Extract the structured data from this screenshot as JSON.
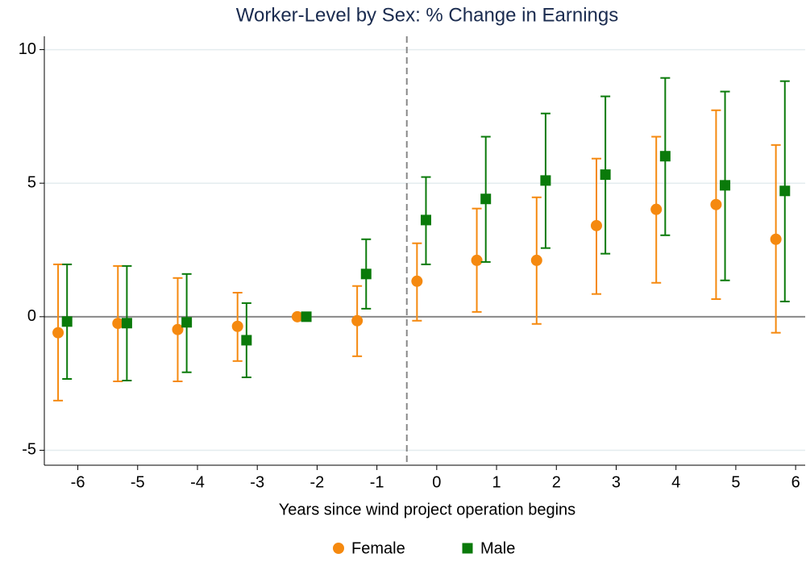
{
  "chart_data": {
    "type": "errorbar",
    "title": "Worker-Level by Sex: % Change in Earnings",
    "xlabel": "Years since wind project operation begins",
    "xlim": [
      -6.56,
      6.16
    ],
    "ylim": [
      -5.56,
      10.5
    ],
    "xticks": [
      -6,
      -5,
      -4,
      -3,
      -2,
      -1,
      0,
      1,
      2,
      3,
      4,
      5,
      6
    ],
    "yticks": [
      -5,
      0,
      5,
      10
    ],
    "grid": true,
    "hline": 0,
    "vline": -0.5,
    "legend": "bottom",
    "series": [
      {
        "name": "Female",
        "color": "#f5890f",
        "marker": "circle",
        "x": [
          -6.33,
          -5.33,
          -4.33,
          -3.33,
          -2.33,
          -1.33,
          -0.33,
          0.67,
          1.67,
          2.67,
          3.67,
          4.67,
          5.67
        ],
        "values": [
          -0.6,
          -0.25,
          -0.48,
          -0.36,
          0,
          -0.15,
          1.33,
          2.11,
          2.11,
          3.41,
          4.02,
          4.2,
          2.9
        ],
        "lower": [
          -3.14,
          -2.42,
          -2.42,
          -1.66,
          null,
          -1.48,
          -0.15,
          0.18,
          -0.27,
          0.85,
          1.27,
          0.66,
          -0.6
        ],
        "upper": [
          1.96,
          1.9,
          1.45,
          0.9,
          null,
          1.15,
          2.75,
          4.05,
          4.47,
          5.92,
          6.74,
          7.73,
          6.43
        ]
      },
      {
        "name": "Male",
        "color": "#0a7a0a",
        "marker": "square",
        "x": [
          -6.18,
          -5.18,
          -4.18,
          -3.18,
          -2.18,
          -1.18,
          -0.18,
          0.82,
          1.82,
          2.82,
          3.82,
          4.82,
          5.82
        ],
        "values": [
          -0.18,
          -0.24,
          -0.21,
          -0.88,
          0,
          1.6,
          3.62,
          4.41,
          5.1,
          5.32,
          6.01,
          4.92,
          4.71
        ],
        "lower": [
          -2.33,
          -2.39,
          -2.08,
          -2.27,
          null,
          0.3,
          1.96,
          2.05,
          2.57,
          2.36,
          3.05,
          1.36,
          0.57
        ],
        "upper": [
          1.96,
          1.9,
          1.6,
          0.51,
          null,
          2.9,
          5.23,
          6.74,
          7.61,
          8.25,
          8.94,
          8.43,
          8.82
        ]
      }
    ]
  }
}
